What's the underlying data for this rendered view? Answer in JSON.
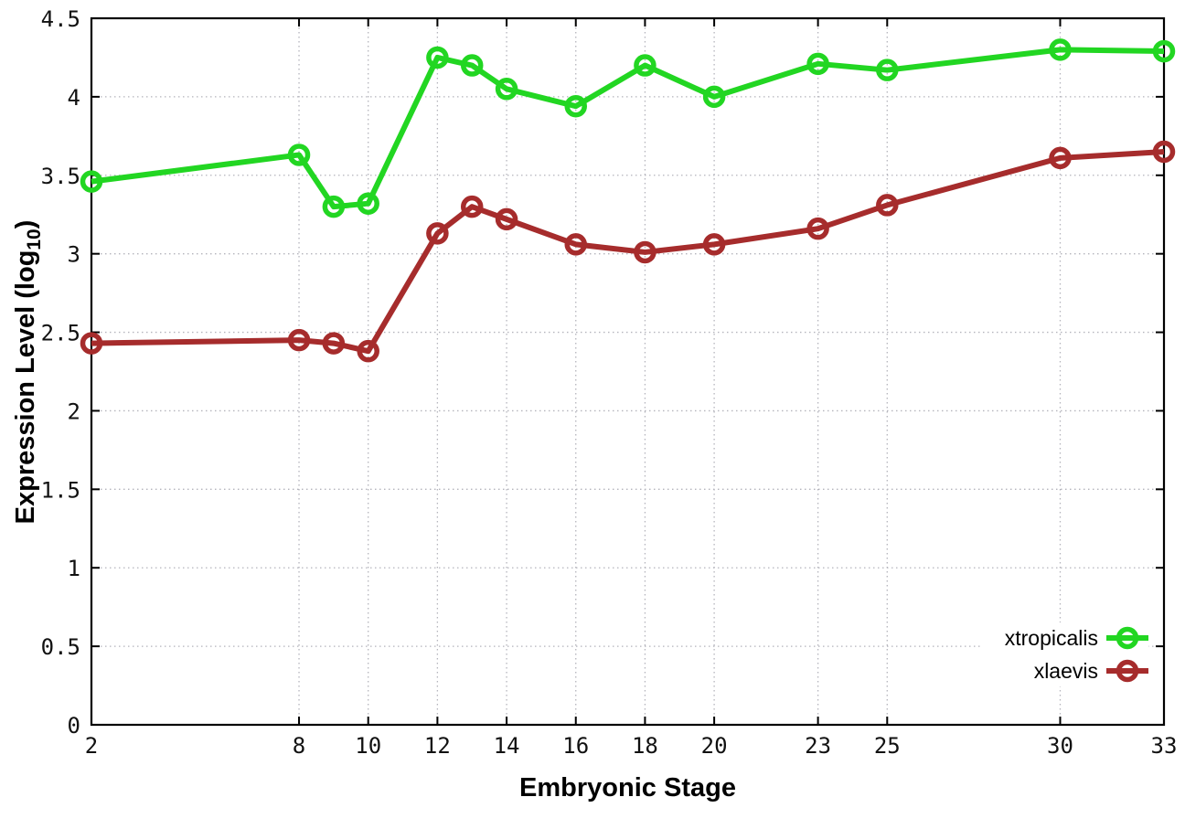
{
  "figure": {
    "background": "#ffffff",
    "xlabel": "Embryonic Stage",
    "ylabel_parts": {
      "pre": "Expression Level (log",
      "sub": "10",
      "post": ")"
    }
  },
  "chart_data": {
    "type": "line",
    "title": "",
    "xlabel": "Embryonic Stage",
    "ylabel": "Expression Level (log10)",
    "x": [
      2,
      8,
      9,
      10,
      12,
      13,
      14,
      16,
      18,
      20,
      23,
      25,
      30,
      33
    ],
    "series": [
      {
        "name": "xtropicalis",
        "color": "#22d622",
        "values": [
          3.46,
          3.63,
          3.3,
          3.32,
          4.25,
          4.2,
          4.05,
          3.94,
          4.2,
          4.0,
          4.21,
          4.17,
          4.3,
          4.29
        ]
      },
      {
        "name": "xlaevis",
        "color": "#a62c2c",
        "values": [
          2.43,
          2.45,
          2.43,
          2.38,
          3.13,
          3.3,
          3.22,
          3.06,
          3.01,
          3.06,
          3.16,
          3.31,
          3.61,
          3.65
        ]
      }
    ],
    "xlim": [
      2,
      33
    ],
    "ylim": [
      0,
      4.5
    ],
    "xticks": {
      "values": [
        2,
        8,
        10,
        12,
        14,
        16,
        18,
        20,
        23,
        25,
        30,
        33
      ],
      "labels": [
        "2",
        "8",
        "10",
        "12",
        "14",
        "16",
        "18",
        "20",
        "23",
        "25",
        "30",
        "33"
      ]
    },
    "yticks": {
      "values": [
        0,
        0.5,
        1,
        1.5,
        2,
        2.5,
        3,
        3.5,
        4,
        4.5
      ],
      "labels": [
        "0",
        "0.5",
        "1",
        "1.5",
        "2",
        "2.5",
        "3",
        "3.5",
        "4",
        "4.5"
      ]
    },
    "grid": true,
    "legend_position": "bottom-right",
    "colors": {
      "border": "#000000",
      "grid": "#b4b4bc",
      "tick_label": "#111111"
    }
  }
}
